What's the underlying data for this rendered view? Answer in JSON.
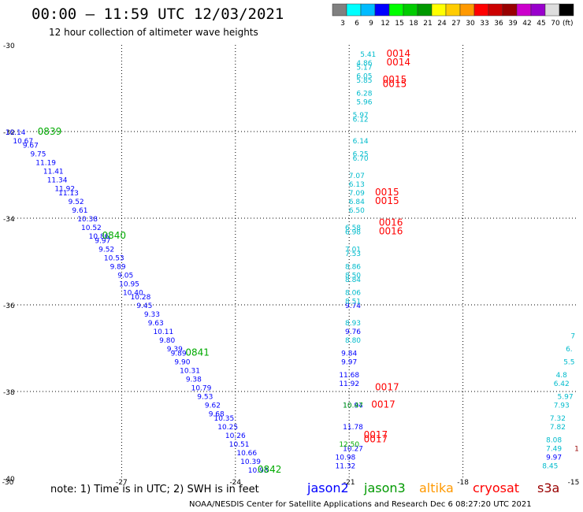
{
  "header": {
    "title": "00:00 – 11:59 UTC 12/03/2021",
    "subtitle": "12 hour collection of altimeter wave heights"
  },
  "colorbar": {
    "colors": [
      "#808080",
      "#00ffff",
      "#00bbff",
      "#0000ff",
      "#00ff00",
      "#00cc00",
      "#009900",
      "#ffff00",
      "#ffcc00",
      "#ff9900",
      "#ff0000",
      "#cc0000",
      "#990000",
      "#cc00cc",
      "#9900cc",
      "#dddddd",
      "#000000"
    ],
    "labels": [
      "3",
      "6",
      "9",
      "12",
      "15",
      "18",
      "21",
      "24",
      "27",
      "30",
      "33",
      "36",
      "39",
      "42",
      "45",
      "70",
      "(ft)"
    ]
  },
  "footer": {
    "note": "note:  1) Time is in UTC; 2) SWH is in feet",
    "satellites": [
      {
        "name": "jason2",
        "color": "#0000ff"
      },
      {
        "name": "jason3",
        "color": "#009900"
      },
      {
        "name": "altika",
        "color": "#ff9900"
      },
      {
        "name": "cryosat",
        "color": "#ff0000"
      },
      {
        "name": "s3a",
        "color": "#990000"
      }
    ],
    "credit": "NOAA/NESDIS Center for Satellite Applications and Research    Dec  6 08:27:20 UTC 2021"
  },
  "chart_data": {
    "type": "scatter",
    "xlim": [
      -30,
      -15
    ],
    "ylim": [
      -40,
      -30
    ],
    "x_ticks": [
      -30,
      -27,
      -24,
      -21,
      -18,
      -15
    ],
    "x_tick_labels": [
      "-30",
      "-27",
      "-24",
      "-21",
      "-18",
      "-15"
    ],
    "y_ticks": [
      -30,
      -32,
      -34,
      -36,
      -38,
      -40
    ],
    "y_tick_labels": [
      "-30",
      "-32",
      "-34",
      "-36",
      "-38",
      "-40"
    ],
    "grid": true,
    "series": [
      {
        "name": "jason2",
        "color": "#0000ff",
        "points": [
          [
            -29.8,
            -32.0,
            "10.14"
          ],
          [
            -29.6,
            -32.2,
            "10.67"
          ],
          [
            -29.4,
            -32.3,
            "9.67"
          ],
          [
            -29.2,
            -32.5,
            "9.75"
          ],
          [
            -29.0,
            -32.7,
            "11.19"
          ],
          [
            -28.8,
            -32.9,
            "11.41"
          ],
          [
            -28.7,
            -33.1,
            "11.34"
          ],
          [
            -28.5,
            -33.3,
            "11.92"
          ],
          [
            -28.4,
            -33.4,
            "11.13"
          ],
          [
            -28.2,
            -33.6,
            "9.52"
          ],
          [
            -28.1,
            -33.8,
            "9.61"
          ],
          [
            -27.9,
            -34.0,
            "10.38"
          ],
          [
            -27.8,
            -34.2,
            "10.52"
          ],
          [
            -27.6,
            -34.4,
            "10.86"
          ],
          [
            -27.5,
            -34.5,
            "9.97"
          ],
          [
            -27.4,
            -34.7,
            "9.52"
          ],
          [
            -27.2,
            -34.9,
            "10.53"
          ],
          [
            -27.1,
            -35.1,
            "9.89"
          ],
          [
            -26.9,
            -35.3,
            "9.05"
          ],
          [
            -26.8,
            -35.5,
            "10.95"
          ],
          [
            -26.7,
            -35.7,
            "10.40"
          ],
          [
            -26.5,
            -35.8,
            "10.28"
          ],
          [
            -26.4,
            -36.0,
            "9.45"
          ],
          [
            -26.2,
            -36.2,
            "9.33"
          ],
          [
            -26.1,
            -36.4,
            "9.63"
          ],
          [
            -25.9,
            -36.6,
            "10.11"
          ],
          [
            -25.8,
            -36.8,
            "9.80"
          ],
          [
            -25.6,
            -37.0,
            "9.39"
          ],
          [
            -25.5,
            -37.1,
            "9.89"
          ],
          [
            -25.4,
            -37.3,
            "9.90"
          ],
          [
            -25.2,
            -37.5,
            "10.31"
          ],
          [
            -25.1,
            -37.7,
            "9.38"
          ],
          [
            -24.9,
            -37.9,
            "10.79"
          ],
          [
            -24.8,
            -38.1,
            "9.53"
          ],
          [
            -24.6,
            -38.3,
            "9.62"
          ],
          [
            -24.5,
            -38.5,
            "9.68"
          ],
          [
            -24.3,
            -38.6,
            "10.35"
          ],
          [
            -24.2,
            -38.8,
            "10.25"
          ],
          [
            -24.0,
            -39.0,
            "10.26"
          ],
          [
            -23.9,
            -39.2,
            "10.51"
          ],
          [
            -23.7,
            -39.4,
            "10.66"
          ],
          [
            -23.6,
            -39.6,
            "10.39"
          ],
          [
            -23.4,
            -39.8,
            "10.93"
          ],
          [
            -20.9,
            -36.0,
            "9.74"
          ],
          [
            -20.9,
            -36.6,
            "9.76"
          ],
          [
            -21.0,
            -37.1,
            "9.84"
          ],
          [
            -21.0,
            -37.3,
            "9.97"
          ],
          [
            -21.0,
            -37.6,
            "11.68"
          ],
          [
            -21.0,
            -37.8,
            "11.92"
          ],
          [
            -21.1,
            -39.5,
            "10.98"
          ],
          [
            -21.1,
            -39.7,
            "11.32"
          ],
          [
            -20.9,
            -38.8,
            "11.78"
          ],
          [
            -20.9,
            -38.3,
            "10.94"
          ],
          [
            -15.6,
            -39.5,
            "9.97"
          ],
          [
            -20.9,
            -39.3,
            "10.27"
          ]
        ]
      },
      {
        "name": "jason3",
        "color": "#00aa00",
        "points": [
          [
            -28.9,
            -32.0,
            "0839"
          ],
          [
            -27.2,
            -34.4,
            "0840"
          ],
          [
            -25.0,
            -37.1,
            "0841"
          ],
          [
            -23.1,
            -39.8,
            "0842"
          ],
          [
            -20.9,
            -38.3,
            "10.47"
          ],
          [
            -21.0,
            -39.2,
            "12.50"
          ]
        ]
      },
      {
        "name": "jason2-cyan",
        "color": "#00bbcc",
        "points": [
          [
            -20.5,
            -30.2,
            "5.41"
          ],
          [
            -20.6,
            -30.4,
            "4.86"
          ],
          [
            -20.6,
            -30.5,
            "5.17"
          ],
          [
            -20.6,
            -30.7,
            "6.05"
          ],
          [
            -20.6,
            -30.8,
            "5.85"
          ],
          [
            -20.6,
            -31.1,
            "6.28"
          ],
          [
            -20.6,
            -31.3,
            "5.96"
          ],
          [
            -20.7,
            -31.6,
            "5.97"
          ],
          [
            -20.7,
            -31.7,
            "6.12"
          ],
          [
            -20.7,
            -32.2,
            "6.14"
          ],
          [
            -20.7,
            -32.5,
            "6.25"
          ],
          [
            -20.7,
            -32.6,
            "6.70"
          ],
          [
            -20.8,
            -33.0,
            "7.07"
          ],
          [
            -20.8,
            -33.2,
            "6.13"
          ],
          [
            -20.8,
            -33.4,
            "7.09"
          ],
          [
            -20.8,
            -33.6,
            "6.84"
          ],
          [
            -20.8,
            -33.8,
            "6.50"
          ],
          [
            -20.9,
            -34.2,
            "6.58"
          ],
          [
            -20.9,
            -34.3,
            "6.98"
          ],
          [
            -20.9,
            -34.7,
            "7.01"
          ],
          [
            -20.9,
            -34.8,
            "7.53"
          ],
          [
            -20.9,
            -35.1,
            "8.86"
          ],
          [
            -20.9,
            -35.3,
            "8.50"
          ],
          [
            -20.9,
            -35.4,
            "8.84"
          ],
          [
            -20.9,
            -35.7,
            "8.06"
          ],
          [
            -20.9,
            -35.9,
            "8.51"
          ],
          [
            -20.9,
            -36.4,
            "8.93"
          ],
          [
            -20.9,
            -36.8,
            "8.80"
          ],
          [
            -15.4,
            -37.8,
            "6.42"
          ],
          [
            -15.4,
            -37.6,
            "4.8"
          ],
          [
            -15.2,
            -37.3,
            "5.5"
          ],
          [
            -15.2,
            -37.0,
            "6."
          ],
          [
            -15.1,
            -36.7,
            "7"
          ],
          [
            -15.3,
            -38.1,
            "5.97"
          ],
          [
            -15.4,
            -38.3,
            "7.93"
          ],
          [
            -15.5,
            -38.6,
            "7.32"
          ],
          [
            -15.5,
            -38.8,
            "7.82"
          ],
          [
            -15.6,
            -39.1,
            "8.08"
          ],
          [
            -15.6,
            -39.3,
            "7.49"
          ],
          [
            -15.7,
            -39.7,
            "8.45"
          ]
        ]
      },
      {
        "name": "cryosat",
        "color": "#ff0000",
        "points": [
          [
            -19.7,
            -30.2,
            "0014"
          ],
          [
            -19.7,
            -30.4,
            "0014"
          ],
          [
            -19.8,
            -30.8,
            "0015"
          ],
          [
            -19.8,
            -30.9,
            "0015"
          ],
          [
            -20.0,
            -33.4,
            "0015"
          ],
          [
            -20.0,
            -33.6,
            "0015"
          ],
          [
            -19.9,
            -34.1,
            "0016"
          ],
          [
            -19.9,
            -34.3,
            "0016"
          ],
          [
            -20.0,
            -37.9,
            "0017"
          ],
          [
            -20.1,
            -38.3,
            "0017"
          ],
          [
            -20.3,
            -39.0,
            "0017"
          ],
          [
            -20.3,
            -39.1,
            "0017"
          ]
        ]
      },
      {
        "name": "s3a",
        "color": "#990000",
        "points": [
          [
            -15.0,
            -39.3,
            "1"
          ]
        ]
      }
    ]
  }
}
